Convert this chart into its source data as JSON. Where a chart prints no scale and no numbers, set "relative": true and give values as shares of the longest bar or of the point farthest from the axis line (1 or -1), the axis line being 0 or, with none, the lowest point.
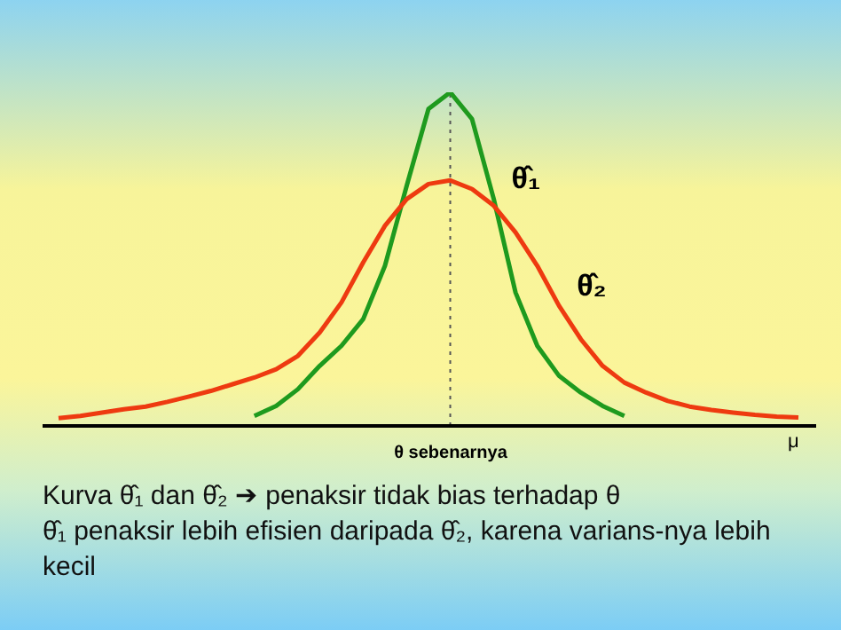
{
  "chart_data": {
    "type": "line",
    "relative": true,
    "xlabel": "θ sebenarnya",
    "categories": [
      null,
      null,
      null,
      null,
      null,
      null,
      null,
      null,
      null,
      null,
      null,
      null,
      null,
      null,
      null,
      null,
      null,
      null,
      null,
      null,
      null,
      null,
      null,
      null,
      null,
      null,
      null,
      null,
      null,
      null,
      null,
      null,
      null,
      null,
      null
    ],
    "series": [
      {
        "name": "θ̂₁",
        "color": "#1e9a1e",
        "values": [
          null,
          null,
          null,
          null,
          null,
          null,
          null,
          null,
          null,
          0.03,
          0.06,
          0.11,
          0.18,
          0.24,
          0.32,
          0.48,
          0.72,
          0.95,
          1,
          0.92,
          0.68,
          0.4,
          0.24,
          0.15,
          0.1,
          0.06,
          0.03,
          null,
          null,
          null,
          null,
          null,
          null,
          null,
          null
        ]
      },
      {
        "name": "θ̂₂",
        "color": "#ee3a10",
        "values": [
          0.023,
          0.03,
          0.04,
          0.05,
          0.058,
          0.072,
          0.088,
          0.105,
          0.125,
          0.145,
          0.17,
          0.21,
          0.28,
          0.37,
          0.49,
          0.6,
          0.68,
          0.725,
          0.736,
          0.71,
          0.66,
          0.58,
          0.48,
          0.36,
          0.26,
          0.18,
          0.13,
          0.1,
          0.075,
          0.058,
          0.048,
          0.04,
          0.033,
          0.028,
          0.025
        ]
      }
    ],
    "annotations": [
      {
        "text": "μ"
      },
      "Kurva θ̂₁  dan θ̂₂ ➔ penaksir tidak bias terhadap θ",
      "θ̂₁  penaksir lebih efisien daripada θ̂₂, karena varians-nya lebih kecil"
    ]
  }
}
